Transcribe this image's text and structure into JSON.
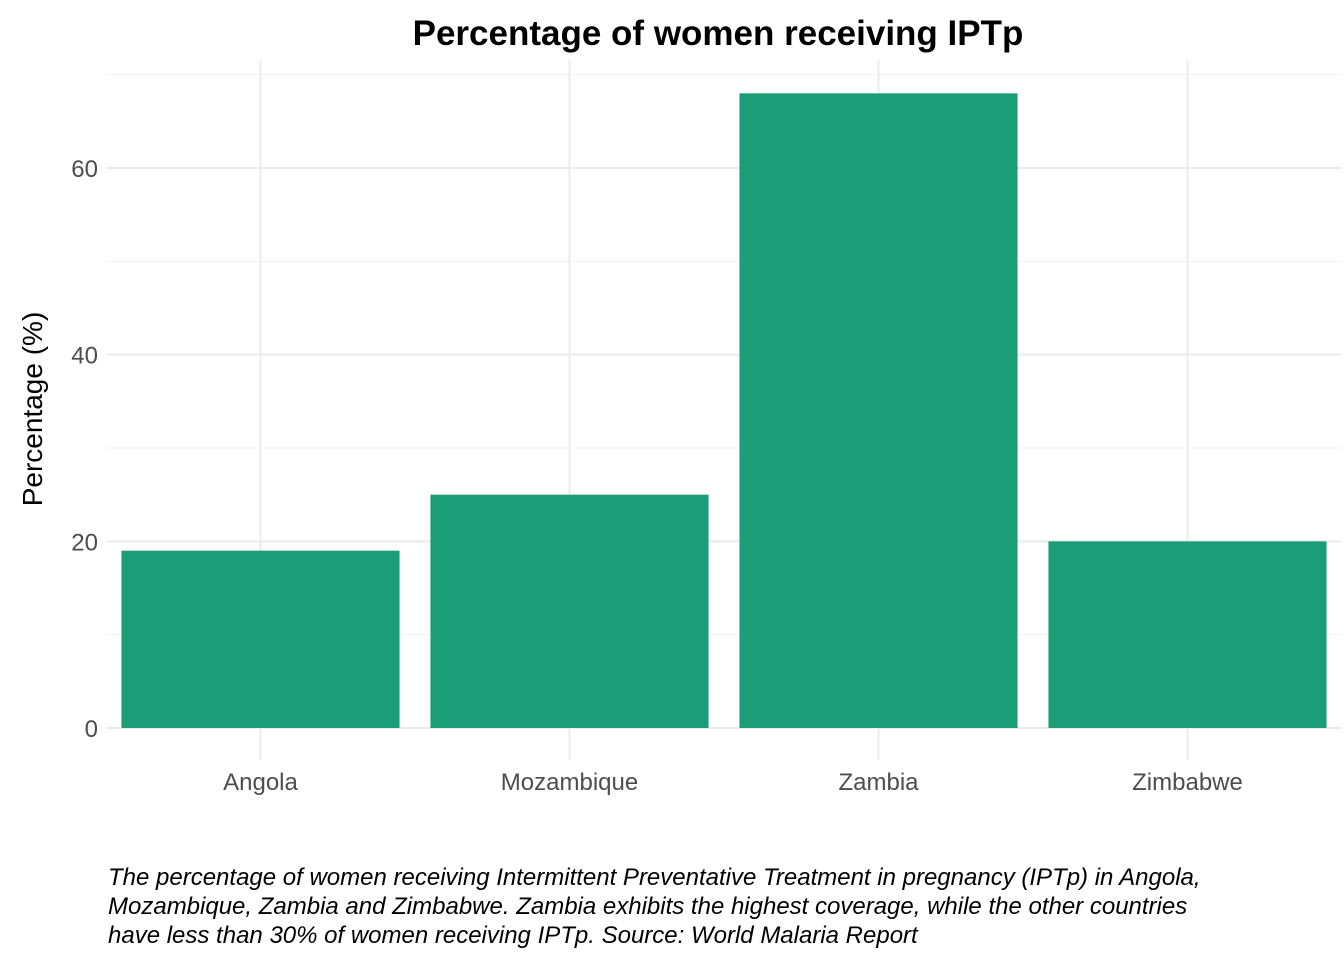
{
  "chart_data": {
    "type": "bar",
    "title": "Percentage of women receiving IPTp",
    "xlabel": "",
    "ylabel": "Percentage (%)",
    "categories": [
      "Angola",
      "Mozambique",
      "Zambia",
      "Zimbabwe"
    ],
    "values": [
      19,
      25,
      68,
      20
    ],
    "ylim": [
      0,
      70
    ],
    "yticks": [
      0,
      20,
      40,
      60
    ],
    "grid": true,
    "bar_color": "#1b9e77",
    "caption": "The percentage of women receiving Intermittent Preventative Treatment in pregnancy (IPTp) in Angola,\nMozambique, Zambia and Zimbabwe. Zambia exhibits the highest coverage, while the other countries\nhave less than 30% of women receiving IPTp. Source: World Malaria Report"
  }
}
